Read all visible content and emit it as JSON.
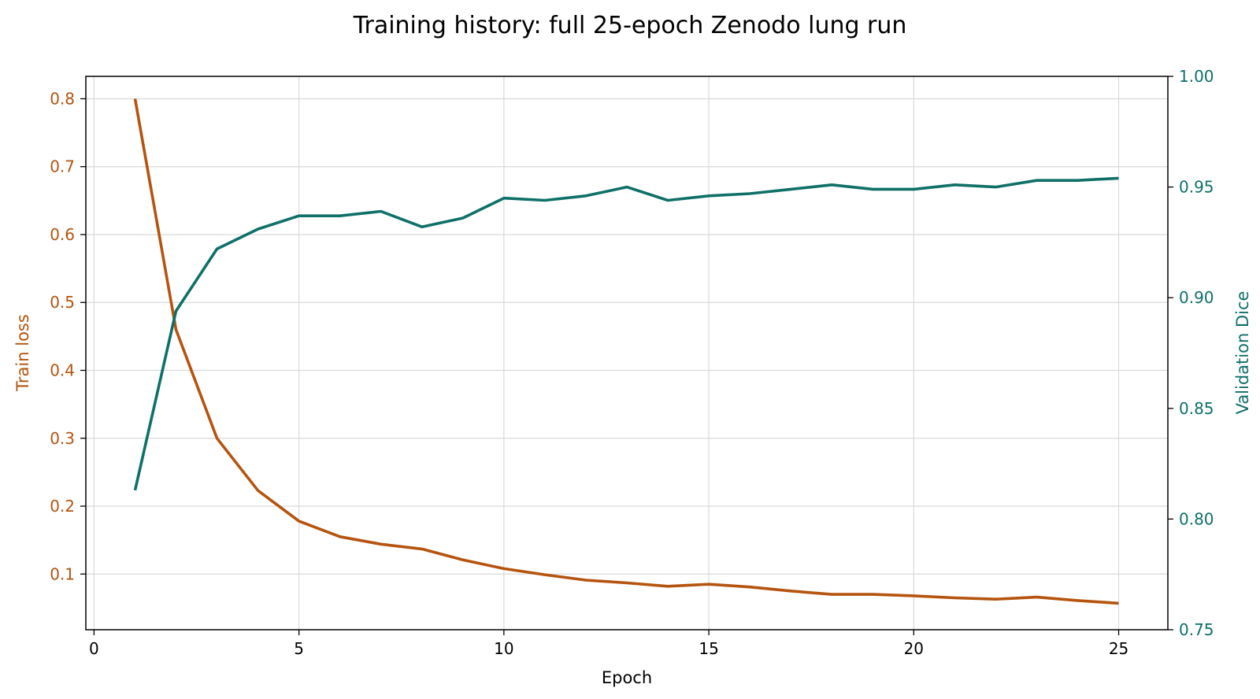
{
  "chart_data": {
    "type": "line",
    "title": "Training history: full 25-epoch Zenodo lung run",
    "xlabel": "Epoch",
    "ylabel_left": "Train loss",
    "ylabel_right": "Validation Dice",
    "xlim": [
      -0.2,
      26.2
    ],
    "ylim_left": [
      0.018,
      0.833
    ],
    "ylim_right": [
      0.75,
      1.0
    ],
    "x_ticks": [
      0,
      5,
      10,
      15,
      20,
      25
    ],
    "y_ticks_left": [
      0.1,
      0.2,
      0.3,
      0.4,
      0.5,
      0.6,
      0.7,
      0.8
    ],
    "y_ticks_right": [
      0.75,
      0.8,
      0.85,
      0.9,
      0.95,
      1.0
    ],
    "grid": true,
    "colors": {
      "loss": "#b5540f",
      "dice": "#0f7068",
      "grid": "#d9d9d9",
      "axis": "#000000"
    },
    "x": [
      1,
      2,
      3,
      4,
      5,
      6,
      7,
      8,
      9,
      10,
      11,
      12,
      13,
      14,
      15,
      16,
      17,
      18,
      19,
      20,
      21,
      22,
      23,
      24,
      25
    ],
    "series": [
      {
        "axis": "left",
        "color": "#b5540f",
        "values": [
          0.8,
          0.46,
          0.3,
          0.223,
          0.178,
          0.155,
          0.144,
          0.137,
          0.121,
          0.108,
          0.099,
          0.091,
          0.087,
          0.082,
          0.085,
          0.081,
          0.075,
          0.07,
          0.07,
          0.068,
          0.065,
          0.063,
          0.066,
          0.061,
          0.057
        ]
      },
      {
        "axis": "right",
        "color": "#0f7068",
        "values": [
          0.813,
          0.894,
          0.922,
          0.931,
          0.937,
          0.937,
          0.939,
          0.932,
          0.936,
          0.945,
          0.944,
          0.946,
          0.95,
          0.944,
          0.946,
          0.947,
          0.949,
          0.951,
          0.949,
          0.949,
          0.951,
          0.95,
          0.953,
          0.953,
          0.954
        ]
      }
    ]
  }
}
